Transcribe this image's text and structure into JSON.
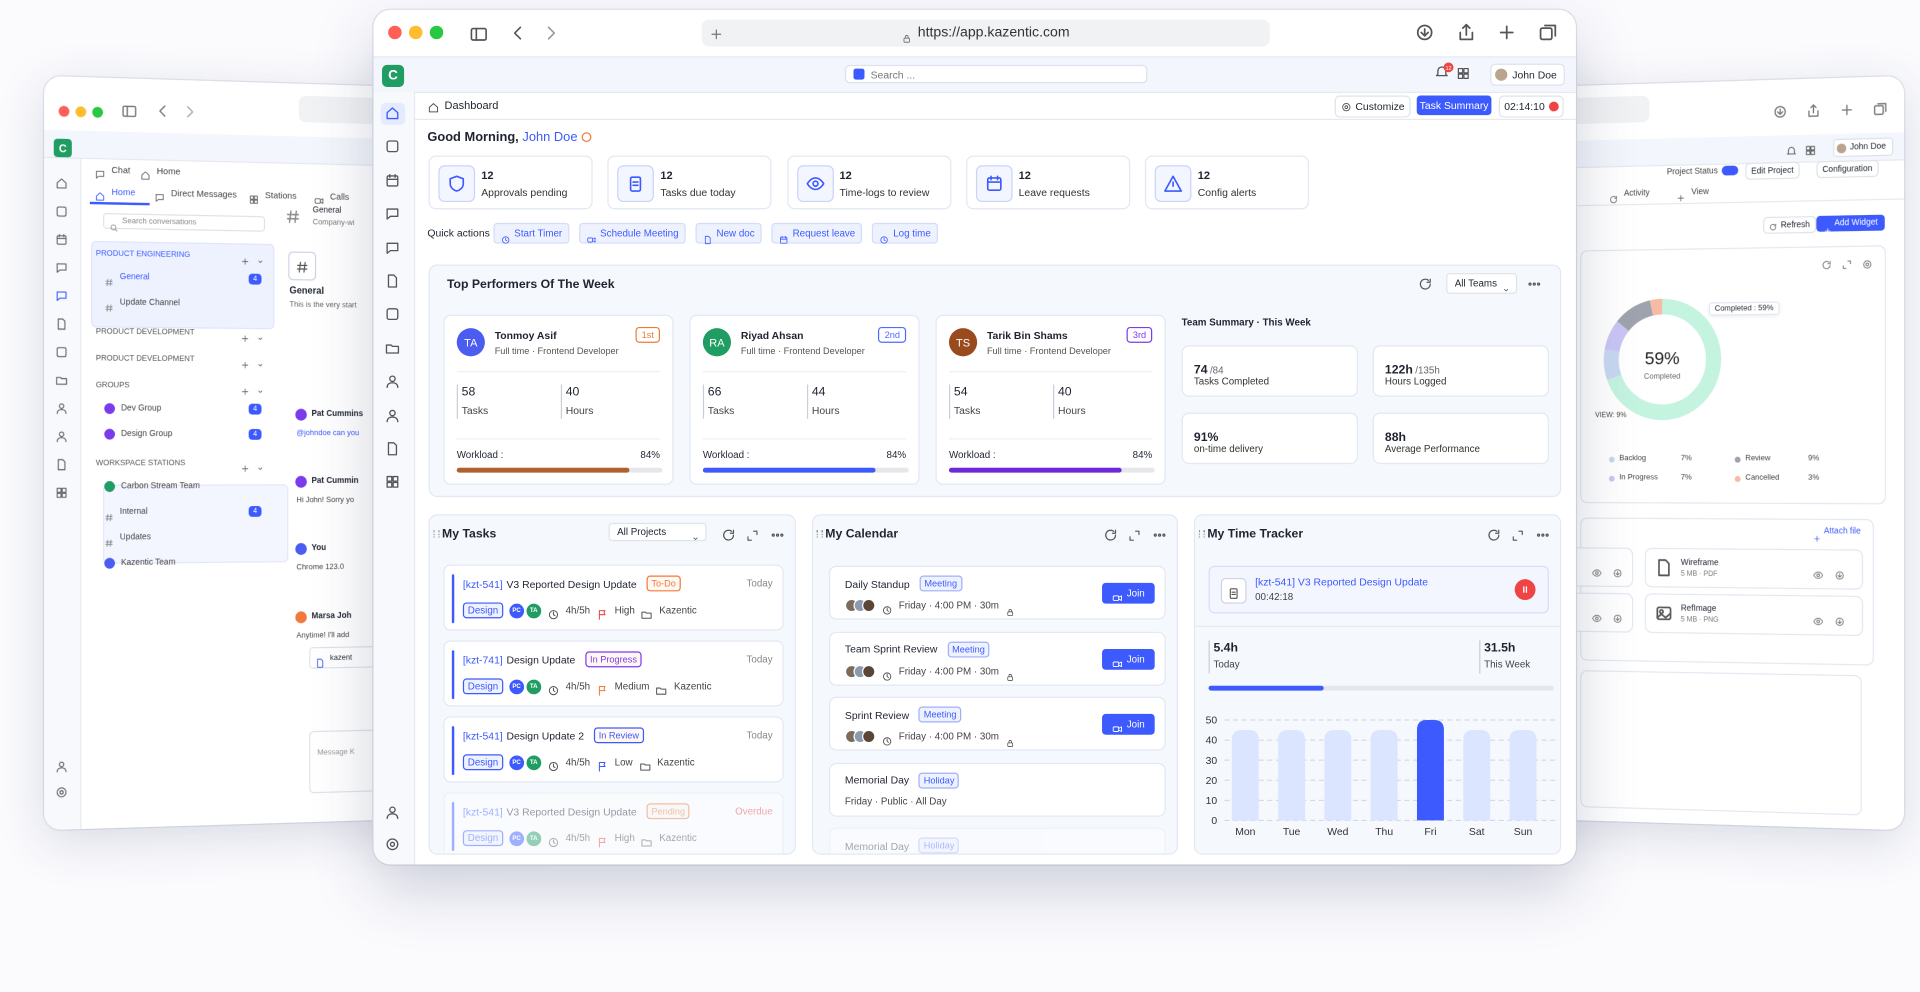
{
  "main_window": {
    "url": "https://app.kazentic.com",
    "logo": "C",
    "search_placeholder": "Search ...",
    "notifications": "12",
    "user": "John Doe",
    "breadcrumb": "Dashboard",
    "customize": "Customize",
    "task_summary": "Task Summary",
    "timer": "02:14:10",
    "greeting": "Good Morning,",
    "greeting_name": "John Doe",
    "stats": [
      {
        "count": "12",
        "label": "Approvals pending",
        "icon": "shield"
      },
      {
        "count": "12",
        "label": "Tasks due today",
        "icon": "clip"
      },
      {
        "count": "12",
        "label": "Time-logs to review",
        "icon": "eye"
      },
      {
        "count": "12",
        "label": "Leave requests",
        "icon": "cal"
      },
      {
        "count": "12",
        "label": "Config alerts",
        "icon": "warn"
      }
    ],
    "quick_actions": {
      "label": "Quick actions",
      "items": [
        "Start Timer",
        "Schedule Meeting",
        "New doc",
        "Request leave",
        "Log time"
      ]
    },
    "performers": {
      "title": "Top Performers Of The Week",
      "filter": "All Teams",
      "tasks_label": "Tasks",
      "hours_label": "Hours",
      "workload_text": "Workload :",
      "people": [
        {
          "initials": "TA",
          "name": "Tonmoy Asif",
          "role": "Full time · Frontend Developer",
          "rank": "1st",
          "tasks": "58",
          "hours": "40",
          "workload": 84,
          "workload_label": "84%",
          "avatar_color": "#4b5cf0",
          "bar_color": "#b0612b",
          "rank_color": "#f07a3a"
        },
        {
          "initials": "RA",
          "name": "Riyad Ahsan",
          "role": "Full time · Frontend Developer",
          "rank": "2nd",
          "tasks": "66",
          "hours": "44",
          "workload": 84,
          "workload_label": "84%",
          "avatar_color": "#1f9d62",
          "bar_color": "#3d5afe",
          "rank_color": "#4f6bff"
        },
        {
          "initials": "TS",
          "name": "Tarik Bin Shams",
          "role": "Full time · Frontend Developer",
          "rank": "3rd",
          "tasks": "54",
          "hours": "40",
          "workload": 84,
          "workload_label": "84%",
          "avatar_color": "#9a4a1f",
          "bar_color": "#6d28d9",
          "rank_color": "#7c3aed"
        }
      ],
      "summary": {
        "title": "Team Summary · This Week",
        "items": [
          {
            "value": "74",
            "total": "/84",
            "label": "Tasks Completed"
          },
          {
            "value": "122h",
            "total": "/135h",
            "label": "Hours Logged"
          },
          {
            "value": "91%",
            "label": "on-time delivery"
          },
          {
            "value": "88h",
            "label": "Average Performance"
          }
        ]
      }
    },
    "tasks": {
      "title": "My Tasks",
      "filter": "All Projects",
      "items": [
        {
          "id": "[kzt-541]",
          "title": "V3 Reported Design Update",
          "status": "To-Do",
          "status_color": "#f07a3a",
          "date": "Today",
          "tag": "Design",
          "assignees": [
            "PC",
            "TA"
          ],
          "time": "4h/5h",
          "priority": "High",
          "priority_color": "#ef4444",
          "project": "Kazentic"
        },
        {
          "id": "[kzt-741]",
          "title": "Design Update",
          "status": "In Progress",
          "status_color": "#7c3aed",
          "date": "Today",
          "tag": "Design",
          "assignees": [
            "PC",
            "TA"
          ],
          "time": "4h/5h",
          "priority": "Medium",
          "priority_color": "#f07a3a",
          "project": "Kazentic"
        },
        {
          "id": "[kzt-541]",
          "title": "Design Update 2",
          "status": "In Review",
          "status_color": "#3d5afe",
          "date": "Today",
          "tag": "Design",
          "assignees": [
            "PC",
            "TA"
          ],
          "time": "4h/5h",
          "priority": "Low",
          "priority_color": "#3d5afe",
          "project": "Kazentic"
        },
        {
          "id": "[kzt-541]",
          "title": "V3 Reported Design Update",
          "status": "Pending",
          "status_color": "#f07a3a",
          "date": "Overdue",
          "date_color": "#ef4444",
          "tag": "Design",
          "assignees": [
            "PC",
            "TA"
          ],
          "time": "4h/5h",
          "priority": "High",
          "priority_color": "#ef4444",
          "project": "Kazentic"
        }
      ]
    },
    "calendar": {
      "title": "My Calendar",
      "join": "Join",
      "items": [
        {
          "title": "Daily Standup",
          "type": "Meeting",
          "meta": "Friday · 4:00 PM · 30m"
        },
        {
          "title": "Team Sprint Review",
          "type": "Meeting",
          "meta": "Friday · 4:00 PM · 30m"
        },
        {
          "title": "Sprint Review",
          "type": "Meeting",
          "meta": "Friday · 4:00 PM · 30m"
        },
        {
          "title": "Memorial Day",
          "type": "Holiday",
          "meta": "Friday · Public · All Day"
        },
        {
          "title": "Memorial Day",
          "type": "Holiday"
        }
      ]
    },
    "time_tracker": {
      "title": "My Time Tracker",
      "task": "[kzt-541] V3 Reported Design Update",
      "elapsed": "00:42:18",
      "today": "5.4h",
      "today_label": "Today",
      "week": "31.5h",
      "week_label": "This Week",
      "chart": {
        "type": "bar",
        "categories": [
          "Mon",
          "Tue",
          "Wed",
          "Thu",
          "Fri",
          "Sat",
          "Sun"
        ],
        "values": [
          45,
          45,
          45,
          45,
          50,
          45,
          45
        ],
        "colors": [
          "#dbe5ff",
          "#dbe5ff",
          "#dbe5ff",
          "#dbe5ff",
          "#3d5afe",
          "#dbe5ff",
          "#dbe5ff"
        ],
        "ylim": [
          0,
          50
        ],
        "yticks": [
          0,
          10,
          20,
          30,
          40,
          50
        ],
        "grid": true
      }
    }
  },
  "chat_window": {
    "logo": "C",
    "tabs": [
      "Chat",
      "Home"
    ],
    "nav": [
      "Home",
      "Direct Messages",
      "Stations",
      "Calls"
    ],
    "search_placeholder": "Search conversations",
    "sections": [
      {
        "title": "PRODUCT ENGINEERING",
        "channels": [
          {
            "name": "General",
            "count": "4"
          },
          {
            "name": "Update Channel"
          }
        ]
      },
      {
        "title": "PRODUCT DEVELOPMENT",
        "channels": []
      },
      {
        "title": "PRODUCT DEVELOPMENT",
        "channels": []
      },
      {
        "title": "GROUPS",
        "channels": [
          {
            "name": "Dev Group",
            "count": "4"
          },
          {
            "name": "Design Group",
            "count": "4"
          }
        ]
      },
      {
        "title": "WORKSPACE STATIONS",
        "channels": [
          {
            "name": "Carbon Stream Team"
          },
          {
            "name": "Internal",
            "count": "4"
          },
          {
            "name": "Updates"
          },
          {
            "name": "Kazentic Team"
          }
        ]
      }
    ],
    "channel": {
      "name": "General",
      "description": "Company-wi",
      "intro_title": "General",
      "intro": "This is the very start"
    },
    "messages": [
      {
        "author": "Pat Cummins",
        "text": "@johndoe can you"
      },
      {
        "author": "Pat Cummin",
        "text": "Hi John! Sorry yo"
      },
      {
        "author": "You",
        "text": "Chrome 123.0"
      },
      {
        "author": "Marsa Joh",
        "text": "Anytime! I'll add"
      }
    ],
    "attachment": "kazent",
    "composer_placeholder": "Message K"
  },
  "project_window": {
    "user": "John Doe",
    "project_status": "Project Status",
    "edit_project": "Edit Project",
    "configuration": "Configuration",
    "tabs": [
      "Activity",
      "View"
    ],
    "refresh": "Refresh",
    "add_widget": "Add Widget",
    "status_chart": {
      "type": "donut",
      "center_label": "Completed",
      "tooltip": "Completed : 59%",
      "callout": "VIEW: 9%",
      "segments": [
        {
          "name": "Completed",
          "value": 59,
          "value_label": "59%",
          "color": "#c4f3e0"
        },
        {
          "name": "Backlog",
          "value": 7,
          "value_label": "7%",
          "color": "#c8d8f0"
        },
        {
          "name": "In Progress",
          "value": 7,
          "value_label": "7%",
          "color": "#c9c6f5"
        },
        {
          "name": "Review",
          "value": 9,
          "value_label": "9%",
          "color": "#9ea3ad"
        },
        {
          "name": "Cancelled",
          "value": 3,
          "value_label": "3%",
          "color": "#f5bba4"
        }
      ]
    },
    "attach_file": "Attach file",
    "files": [
      {
        "name": "Wireframe",
        "meta": "5 MB · PDF"
      },
      {
        "name": "RefImage",
        "meta": "5 MB · PNG"
      }
    ]
  }
}
